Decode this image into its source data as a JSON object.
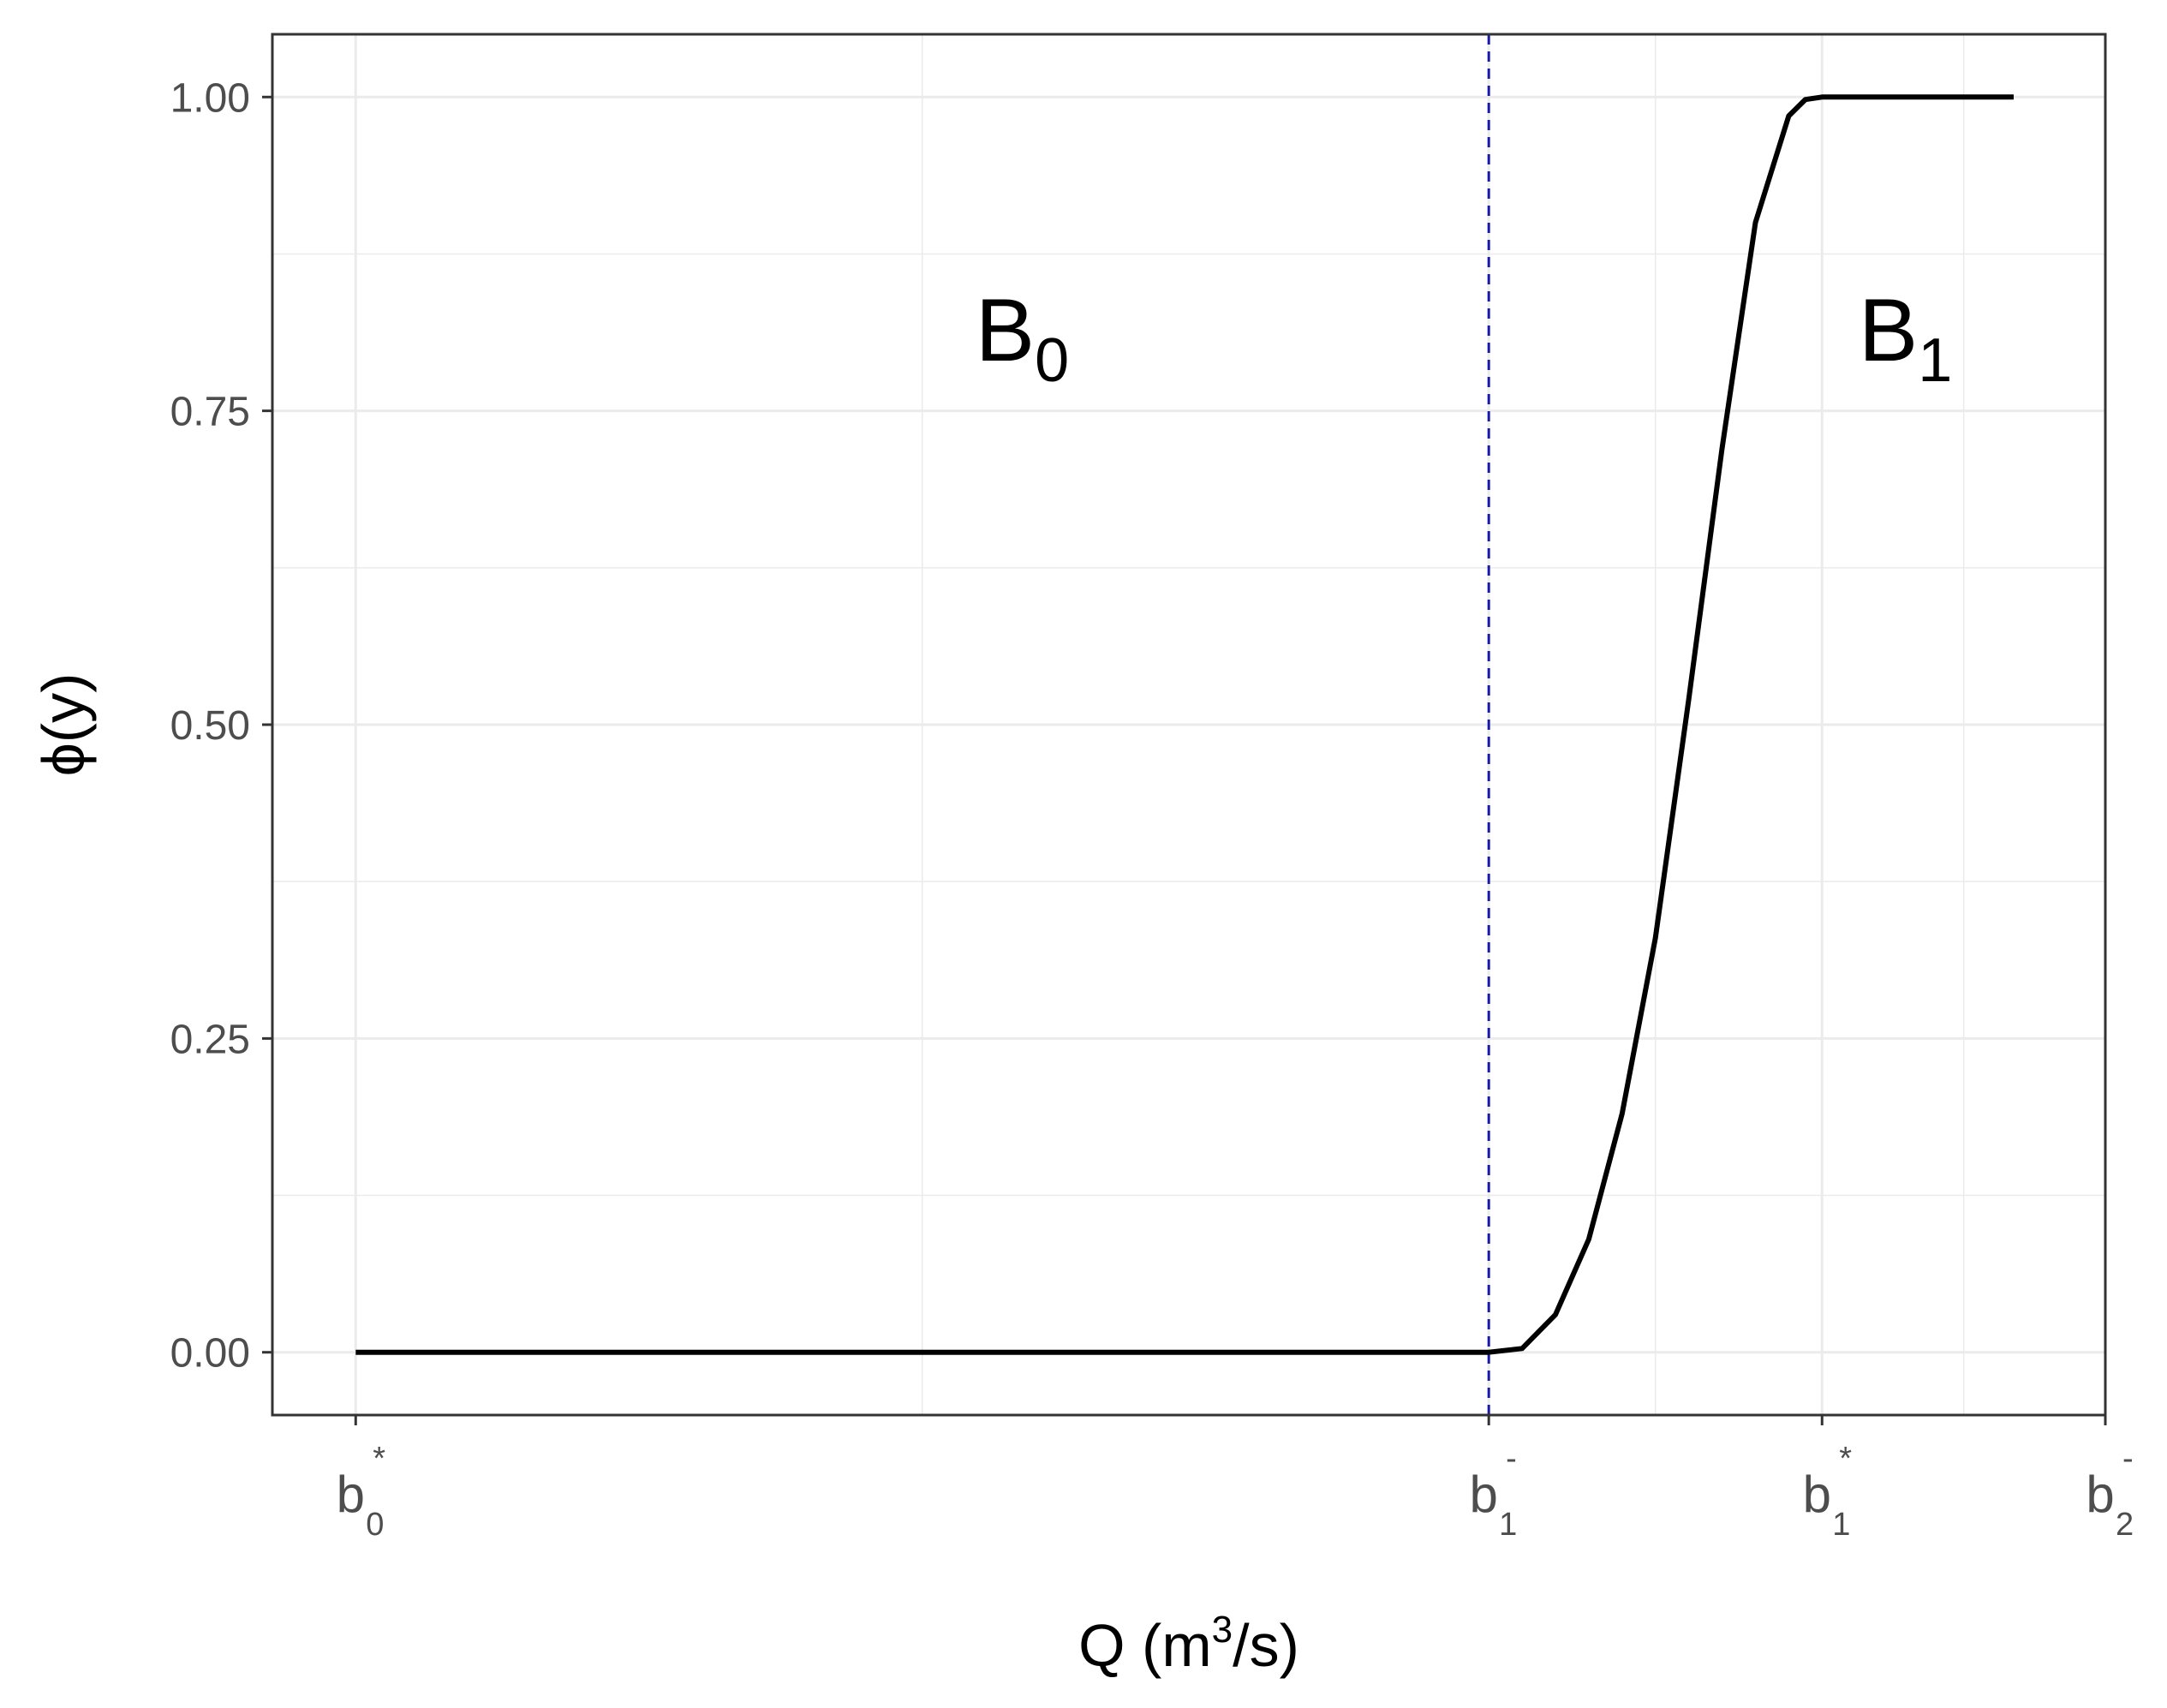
{
  "chart_data": {
    "type": "line",
    "xlabel": {
      "prefix": "Q (m",
      "sup": "3",
      "suffix": "/s)"
    },
    "ylabel": "ϕ(y)",
    "xlim": [
      -0.05,
      1.05
    ],
    "ylim": [
      -0.05,
      1.05
    ],
    "x_ticks": [
      {
        "value": 0.0,
        "main": "b",
        "sup": "*",
        "sub": "0"
      },
      {
        "value": 0.68,
        "main": "b",
        "sup": "-",
        "sub": "1"
      },
      {
        "value": 0.88,
        "main": "b",
        "sup": "*",
        "sub": "1"
      },
      {
        "value": 1.05,
        "main": "b",
        "sup": "-",
        "sub": "2"
      }
    ],
    "y_ticks": [
      "0.00",
      "0.25",
      "0.50",
      "0.75",
      "1.00"
    ],
    "grid": true,
    "reference_lines": [
      {
        "orientation": "vertical",
        "x": 0.68,
        "style": "dashed",
        "color": "#1a1aa6"
      }
    ],
    "region_labels": [
      {
        "main": "B",
        "sub": "0",
        "x": 0.4,
        "y": 0.79
      },
      {
        "main": "B",
        "sub": "1",
        "x": 0.93,
        "y": 0.79
      }
    ],
    "series": [
      {
        "color": "#000000",
        "x": [
          0.0,
          0.1,
          0.2,
          0.3,
          0.4,
          0.5,
          0.6,
          0.68,
          0.7,
          0.72,
          0.74,
          0.76,
          0.78,
          0.8,
          0.82,
          0.84,
          0.86,
          0.87,
          0.88,
          0.9,
          0.92,
          0.94,
          0.96,
          0.98,
          0.995
        ],
        "y": [
          0.0,
          0.0,
          0.0,
          0.0,
          0.0,
          0.0,
          0.0,
          0.0,
          0.003,
          0.03,
          0.09,
          0.19,
          0.33,
          0.52,
          0.72,
          0.9,
          0.985,
          0.998,
          1.0,
          1.0,
          1.0,
          1.0,
          1.0,
          1.0,
          1.0
        ]
      }
    ]
  }
}
